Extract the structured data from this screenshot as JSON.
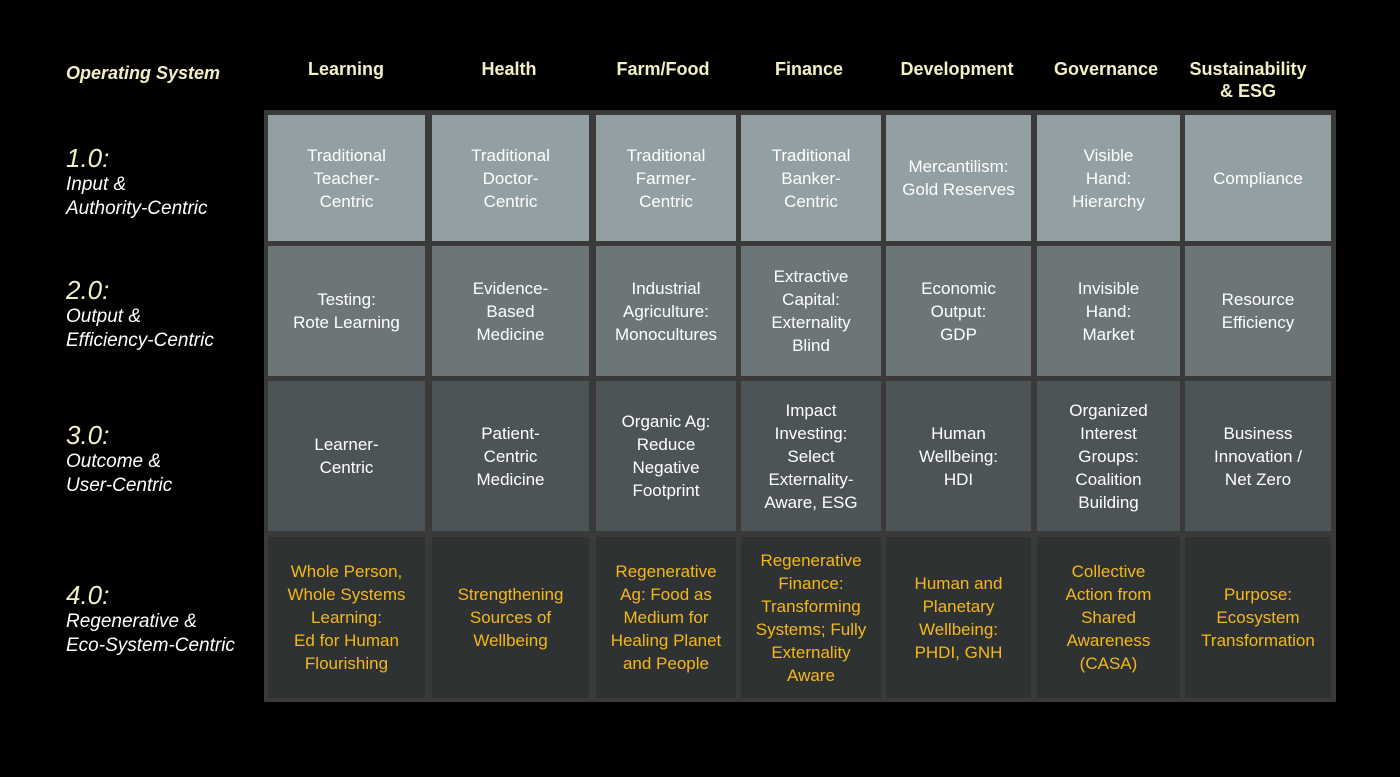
{
  "colors": {
    "background": "#000000",
    "header_text": "#f3f0c4",
    "row1_bg": "#929fa3",
    "row2_bg": "#6c7679",
    "row3_bg": "#4d5457",
    "row4_bg": "#2e3233",
    "light_text": "#ffffff",
    "highlight_text": "#f5b81a",
    "grid_border": "#3a3a3a"
  },
  "corner_header": "Operating System",
  "columns": [
    "Learning",
    "Health",
    "Farm/Food",
    "Finance",
    "Development",
    "Governance",
    "Sustainability\n& ESG"
  ],
  "rows": [
    {
      "version": "1.0:",
      "description": "Input &\nAuthority-Centric",
      "cells": [
        "Traditional\nTeacher-\nCentric",
        "Traditional\nDoctor-\nCentric",
        "Traditional\nFarmer-\nCentric",
        "Traditional\nBanker-\nCentric",
        "Mercantilism:\nGold Reserves",
        "Visible\nHand:\nHierarchy",
        "Compliance"
      ]
    },
    {
      "version": "2.0:",
      "description": "Output &\nEfficiency-Centric",
      "cells": [
        "Testing:\nRote Learning",
        "Evidence-\nBased\nMedicine",
        "Industrial\nAgriculture:\nMonocultures",
        "Extractive\nCapital:\nExternality\nBlind",
        "Economic\nOutput:\nGDP",
        "Invisible\nHand:\nMarket",
        "Resource\nEfficiency"
      ]
    },
    {
      "version": "3.0:",
      "description": "Outcome &\nUser-Centric",
      "cells": [
        "Learner-\nCentric",
        "Patient-\nCentric\nMedicine",
        "Organic Ag:\nReduce\nNegative\nFootprint",
        "Impact\nInvesting:\nSelect\nExternality-\nAware, ESG",
        "Human\nWellbeing:\nHDI",
        "Organized\nInterest\nGroups:\nCoalition\nBuilding",
        "Business\nInnovation /\nNet Zero"
      ]
    },
    {
      "version": "4.0:",
      "description": "Regenerative &\nEco-System-Centric",
      "cells": [
        "Whole Person,\nWhole Systems\nLearning:\nEd for Human\nFlourishing",
        "Strengthening\nSources of\nWellbeing",
        "Regenerative\nAg: Food as\nMedium for\nHealing Planet\nand People",
        "Regenerative\nFinance:\nTransforming\nSystems; Fully\nExternality\nAware",
        "Human and\nPlanetary\nWellbeing:\nPHDI, GNH",
        "Collective\nAction from\nShared\nAwareness\n(CASA)",
        "Purpose:\nEcosystem\nTransformation"
      ]
    }
  ]
}
